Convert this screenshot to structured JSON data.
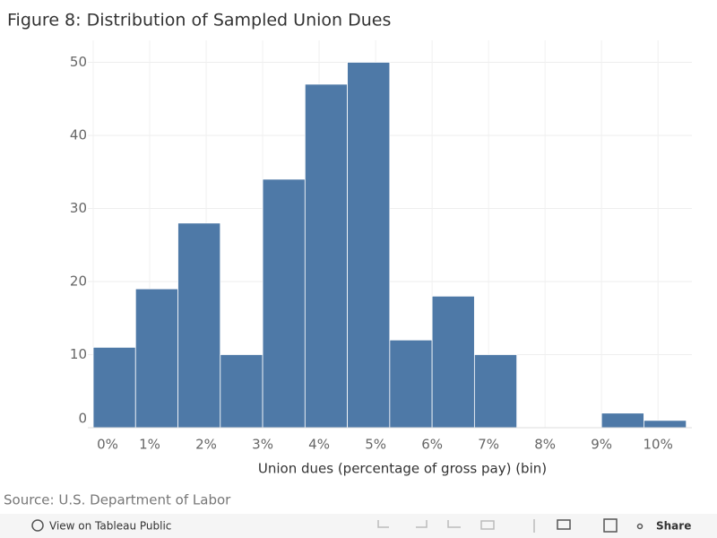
{
  "chart_data": {
    "type": "histogram",
    "title": "Figure 8: Distribution of Sampled Union Dues",
    "xlabel": "Union dues (percentage of gross pay) (bin)",
    "source": "Source: U.S. Department of Labor",
    "bins": [
      0,
      0.75,
      1.5,
      2.25,
      3,
      3.75,
      4.5,
      5.25,
      6,
      6.75,
      7.5,
      8.25,
      9,
      9.75,
      10.5
    ],
    "counts": [
      11,
      19,
      28,
      10,
      34,
      47,
      50,
      12,
      18,
      10,
      0,
      0,
      2,
      1
    ],
    "color": "#4e79a7",
    "xlim": [
      0,
      10.6
    ],
    "ylim": [
      0,
      53
    ],
    "xticks": [
      {
        "value": 0,
        "label": "0%"
      },
      {
        "value": 1,
        "label": "1%"
      },
      {
        "value": 2,
        "label": "2%"
      },
      {
        "value": 3,
        "label": "3%"
      },
      {
        "value": 4,
        "label": "4%"
      },
      {
        "value": 5,
        "label": "5%"
      },
      {
        "value": 6,
        "label": "6%"
      },
      {
        "value": 7,
        "label": "7%"
      },
      {
        "value": 8,
        "label": "8%"
      },
      {
        "value": 9,
        "label": "9%"
      },
      {
        "value": 10,
        "label": "10%"
      }
    ],
    "yticks": [
      0,
      10,
      20,
      30,
      40,
      50
    ],
    "grid": true
  },
  "toolbar": {
    "view_link": "View on Tableau Public",
    "share": "Share"
  }
}
